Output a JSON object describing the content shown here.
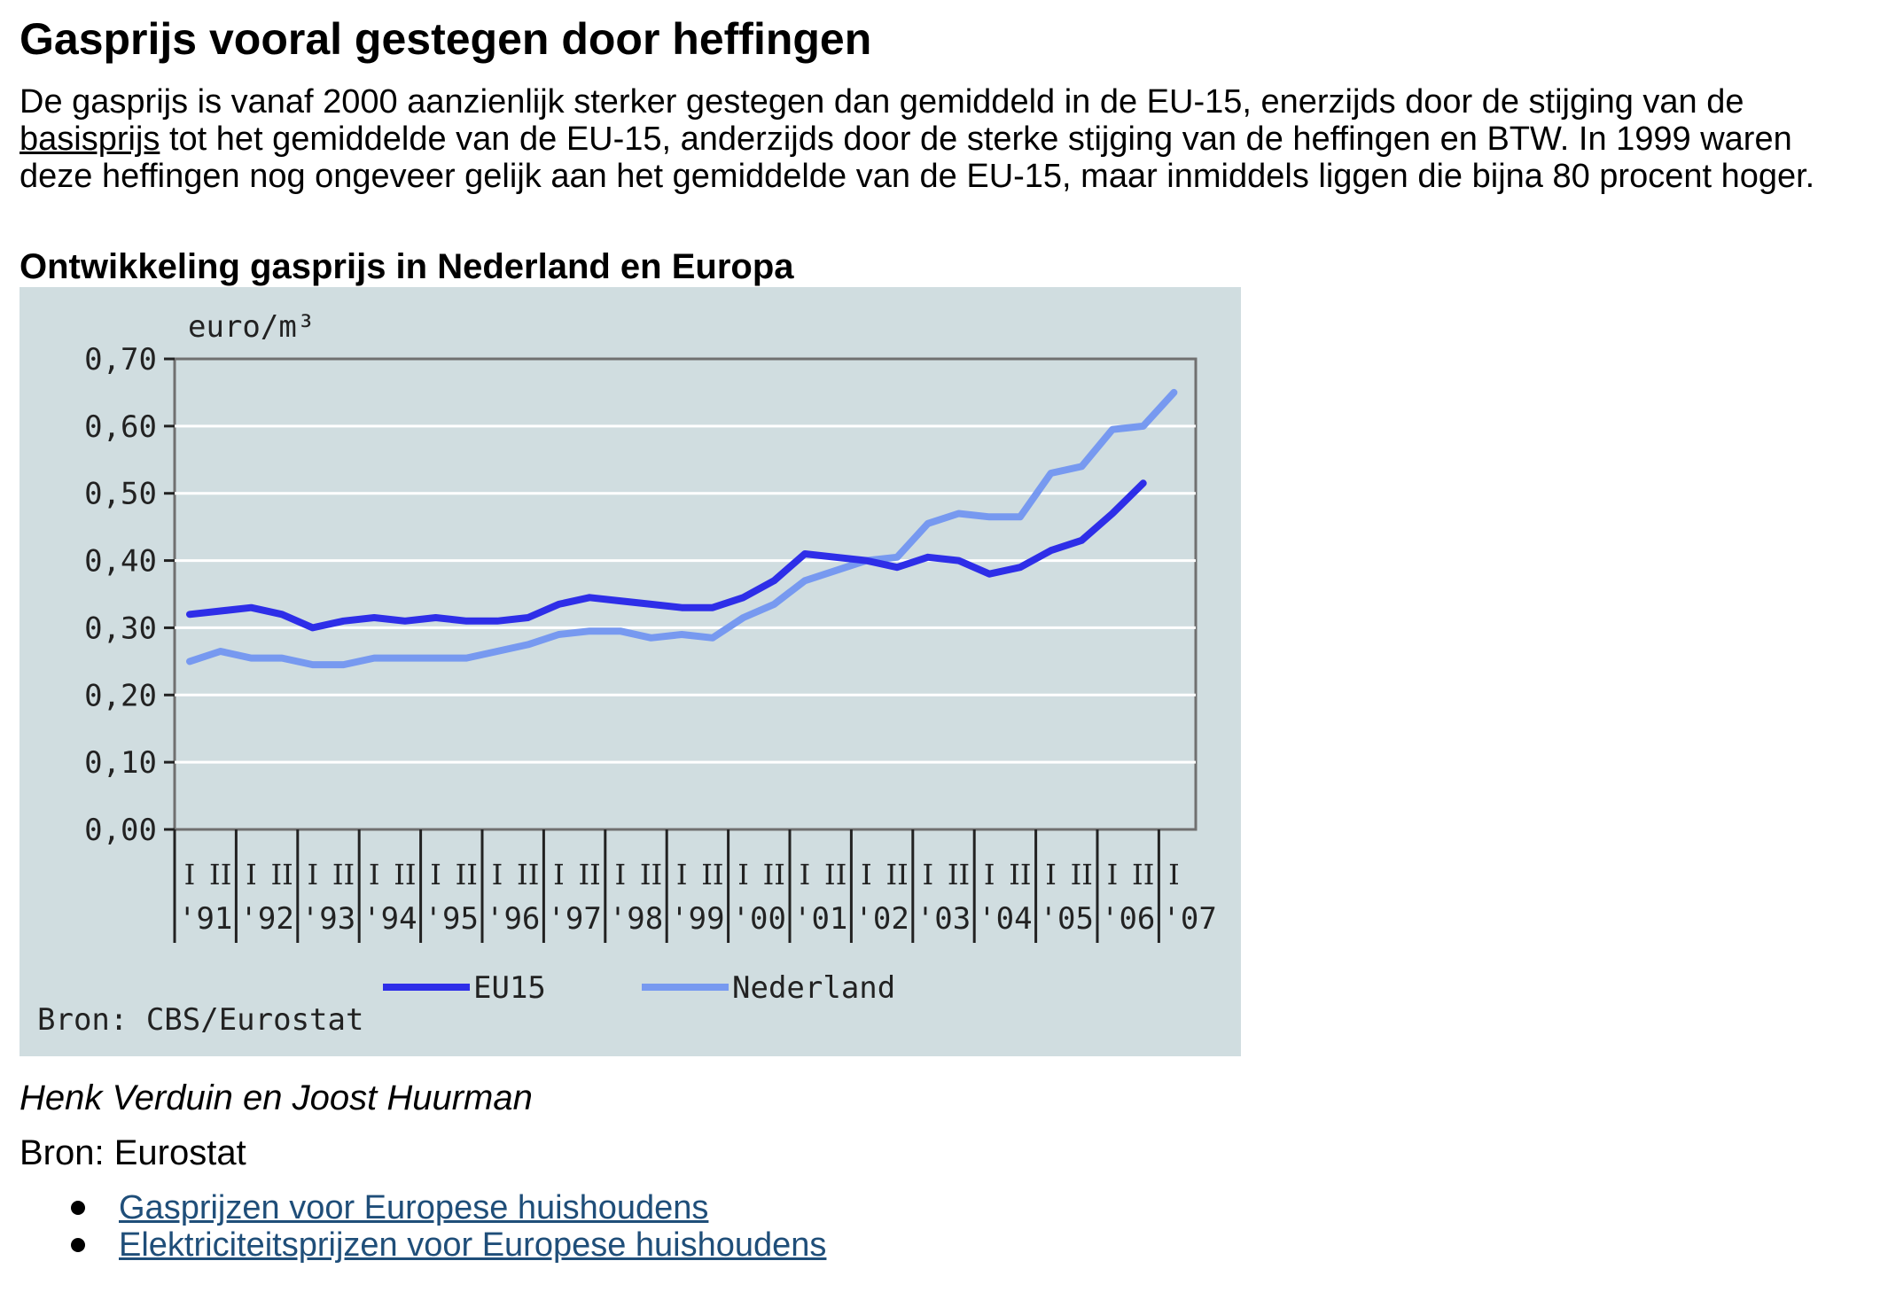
{
  "page": {
    "title": "Gasprijs vooral gestegen door heffingen",
    "intro": {
      "before": "De gasprijs is vanaf 2000 aanzienlijk sterker gestegen dan gemiddeld in de EU-15, enerzijds door de stijging van de ",
      "link": "basisprijs",
      "after": " tot het gemiddelde van de EU-15, anderzijds door de sterke stijging van de heffingen en BTW. In 1999 waren deze heffingen nog ongeveer gelijk aan het gemiddelde van de EU-15, maar inmiddels liggen die bijna 80 procent hoger."
    },
    "chart_heading": "Ontwikkeling gasprijs in Nederland en Europa",
    "author": "Henk Verduin en Joost Huurman",
    "source": "Bron: Eurostat",
    "links": [
      "Gasprijzen voor Europese huishoudens",
      "Elektriciteitsprijzen voor Europese huishoudens"
    ]
  },
  "chart_data": {
    "type": "line",
    "ylabel": "euro/m³",
    "ylim": [
      0,
      0.7
    ],
    "y_ticks": [
      "0,00",
      "0,10",
      "0,20",
      "0,30",
      "0,40",
      "0,50",
      "0,60",
      "0,70"
    ],
    "x_semester_labels": [
      "I",
      "II",
      "I",
      "II",
      "I",
      "II",
      "I",
      "II",
      "I",
      "II",
      "I",
      "II",
      "I",
      "II",
      "I",
      "II",
      "I",
      "II",
      "I",
      "II",
      "I",
      "II",
      "I",
      "II",
      "I",
      "II",
      "I",
      "II",
      "I",
      "II",
      "I",
      "II",
      "I"
    ],
    "x_year_labels": [
      "'91",
      "'92",
      "'93",
      "'94",
      "'95",
      "'96",
      "'97",
      "'98",
      "'99",
      "'00",
      "'01",
      "'02",
      "'03",
      "'04",
      "'05",
      "'06",
      "'07"
    ],
    "grid": true,
    "legend_position": "bottom",
    "source_note": "Bron: CBS/Eurostat",
    "colors": {
      "eu15": "#2e2ee8",
      "nederland": "#7799f0",
      "background": "#d0dde0"
    },
    "x": [
      "1991-I",
      "1991-II",
      "1992-I",
      "1992-II",
      "1993-I",
      "1993-II",
      "1994-I",
      "1994-II",
      "1995-I",
      "1995-II",
      "1996-I",
      "1996-II",
      "1997-I",
      "1997-II",
      "1998-I",
      "1998-II",
      "1999-I",
      "1999-II",
      "2000-I",
      "2000-II",
      "2001-I",
      "2001-II",
      "2002-I",
      "2002-II",
      "2003-I",
      "2003-II",
      "2004-I",
      "2004-II",
      "2005-I",
      "2005-II",
      "2006-I",
      "2006-II",
      "2007-I"
    ],
    "series": [
      {
        "name": "EU15",
        "values": [
          0.32,
          0.325,
          0.33,
          0.32,
          0.3,
          0.31,
          0.315,
          0.31,
          0.315,
          0.31,
          0.31,
          0.315,
          0.335,
          0.345,
          0.34,
          0.335,
          0.33,
          0.33,
          0.345,
          0.37,
          0.41,
          0.405,
          0.4,
          0.39,
          0.405,
          0.4,
          0.38,
          0.39,
          0.415,
          0.43,
          0.47,
          0.515,
          null
        ]
      },
      {
        "name": "Nederland",
        "values": [
          0.25,
          0.265,
          0.255,
          0.255,
          0.245,
          0.245,
          0.255,
          0.255,
          0.255,
          0.255,
          0.265,
          0.275,
          0.29,
          0.295,
          0.295,
          0.285,
          0.29,
          0.285,
          0.315,
          0.335,
          0.37,
          0.385,
          0.4,
          0.405,
          0.455,
          0.47,
          0.465,
          0.465,
          0.53,
          0.54,
          0.595,
          0.6,
          0.65
        ]
      }
    ]
  }
}
